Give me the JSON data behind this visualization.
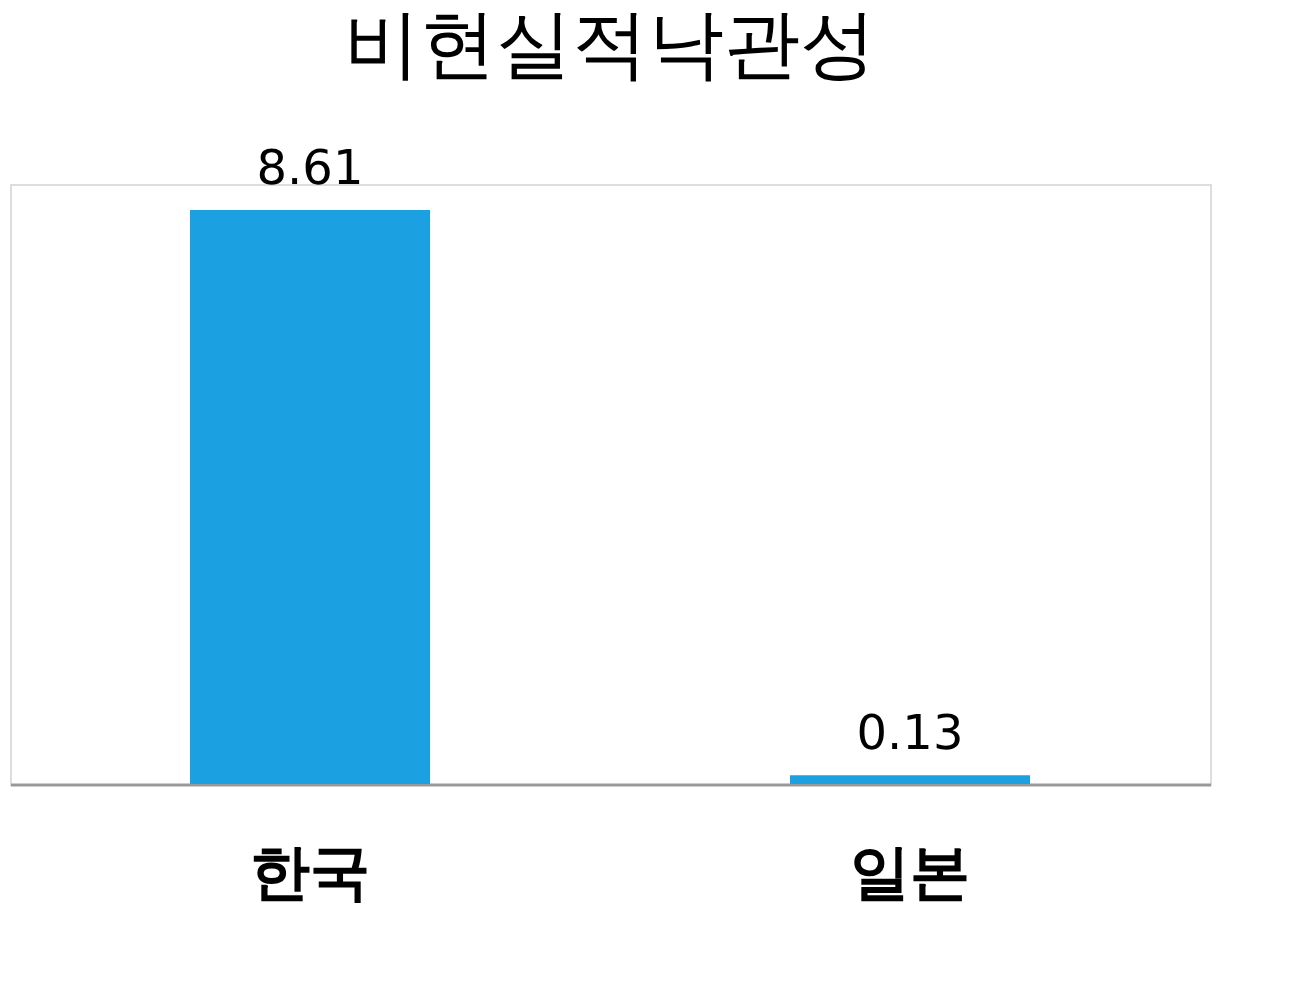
{
  "chart_data": {
    "type": "bar",
    "title": "비현실적낙관성",
    "categories": [
      "한국",
      "일본"
    ],
    "values": [
      8.61,
      0.13
    ],
    "color": "#1ba1e2",
    "data_labels": true
  }
}
